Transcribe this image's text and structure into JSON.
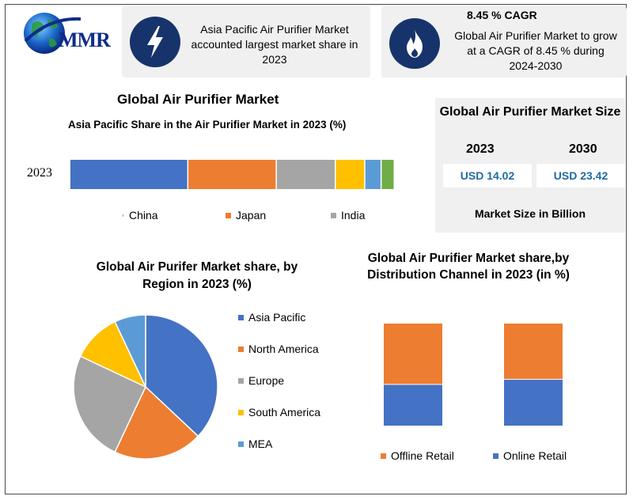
{
  "logo": {
    "text": "MMR"
  },
  "cards": {
    "left_text": "Asia Pacific Air Purifier Market accounted largest market share in 2023",
    "cagr_title": "8.45 % CAGR",
    "right_text": "Global Air Purifier Market to grow at a CAGR of 8.45 % during 2024-2030"
  },
  "market_size": {
    "title": "Global Air Purifier Market Size",
    "years": [
      "2023",
      "2030"
    ],
    "values": [
      "USD 14.02",
      "USD 23.42"
    ],
    "footer": "Market Size in Billion"
  },
  "chart_data": [
    {
      "type": "bar",
      "orientation": "horizontal-stacked",
      "title": "Global Air Purifier Market",
      "subtitle": "Asia Pacific Share in the Air Purifier Market in 2023 (%)",
      "category": "2023",
      "segments": [
        {
          "name": "China",
          "value": 36,
          "color": "#4472c4"
        },
        {
          "name": "Japan",
          "value": 27,
          "color": "#ed7d31"
        },
        {
          "name": "India",
          "value": 18,
          "color": "#a5a5a5"
        },
        {
          "name": "",
          "value": 9,
          "color": "#ffc000"
        },
        {
          "name": "",
          "value": 5,
          "color": "#5b9bd5"
        },
        {
          "name": "",
          "value": 4,
          "color": "#70ad47"
        }
      ],
      "legend": [
        "China",
        "Japan",
        "India"
      ]
    },
    {
      "type": "pie",
      "title": "Global Air Purifer Market share, by Region in 2023 (%)",
      "slices": [
        {
          "name": "Asia Pacific",
          "value": 37,
          "color": "#4472c4"
        },
        {
          "name": "North America",
          "value": 20,
          "color": "#ed7d31"
        },
        {
          "name": "Europe",
          "value": 25,
          "color": "#a5a5a5"
        },
        {
          "name": "South America",
          "value": 11,
          "color": "#ffc000"
        },
        {
          "name": "MEA",
          "value": 7,
          "color": "#5b9bd5"
        }
      ],
      "legend_position": "right"
    },
    {
      "type": "bar",
      "orientation": "vertical-stacked",
      "title": "Global Air Purifier Market share,by Distribution Channel in 2023 (in %)",
      "categories": [
        "",
        ""
      ],
      "series": [
        {
          "name": "Online Retail",
          "values": [
            40,
            45
          ],
          "color": "#4472c4"
        },
        {
          "name": "Offline Retail",
          "values": [
            60,
            55
          ],
          "color": "#ed7d31"
        }
      ],
      "legend": [
        "Offline Retail",
        "Online Retail"
      ]
    }
  ]
}
